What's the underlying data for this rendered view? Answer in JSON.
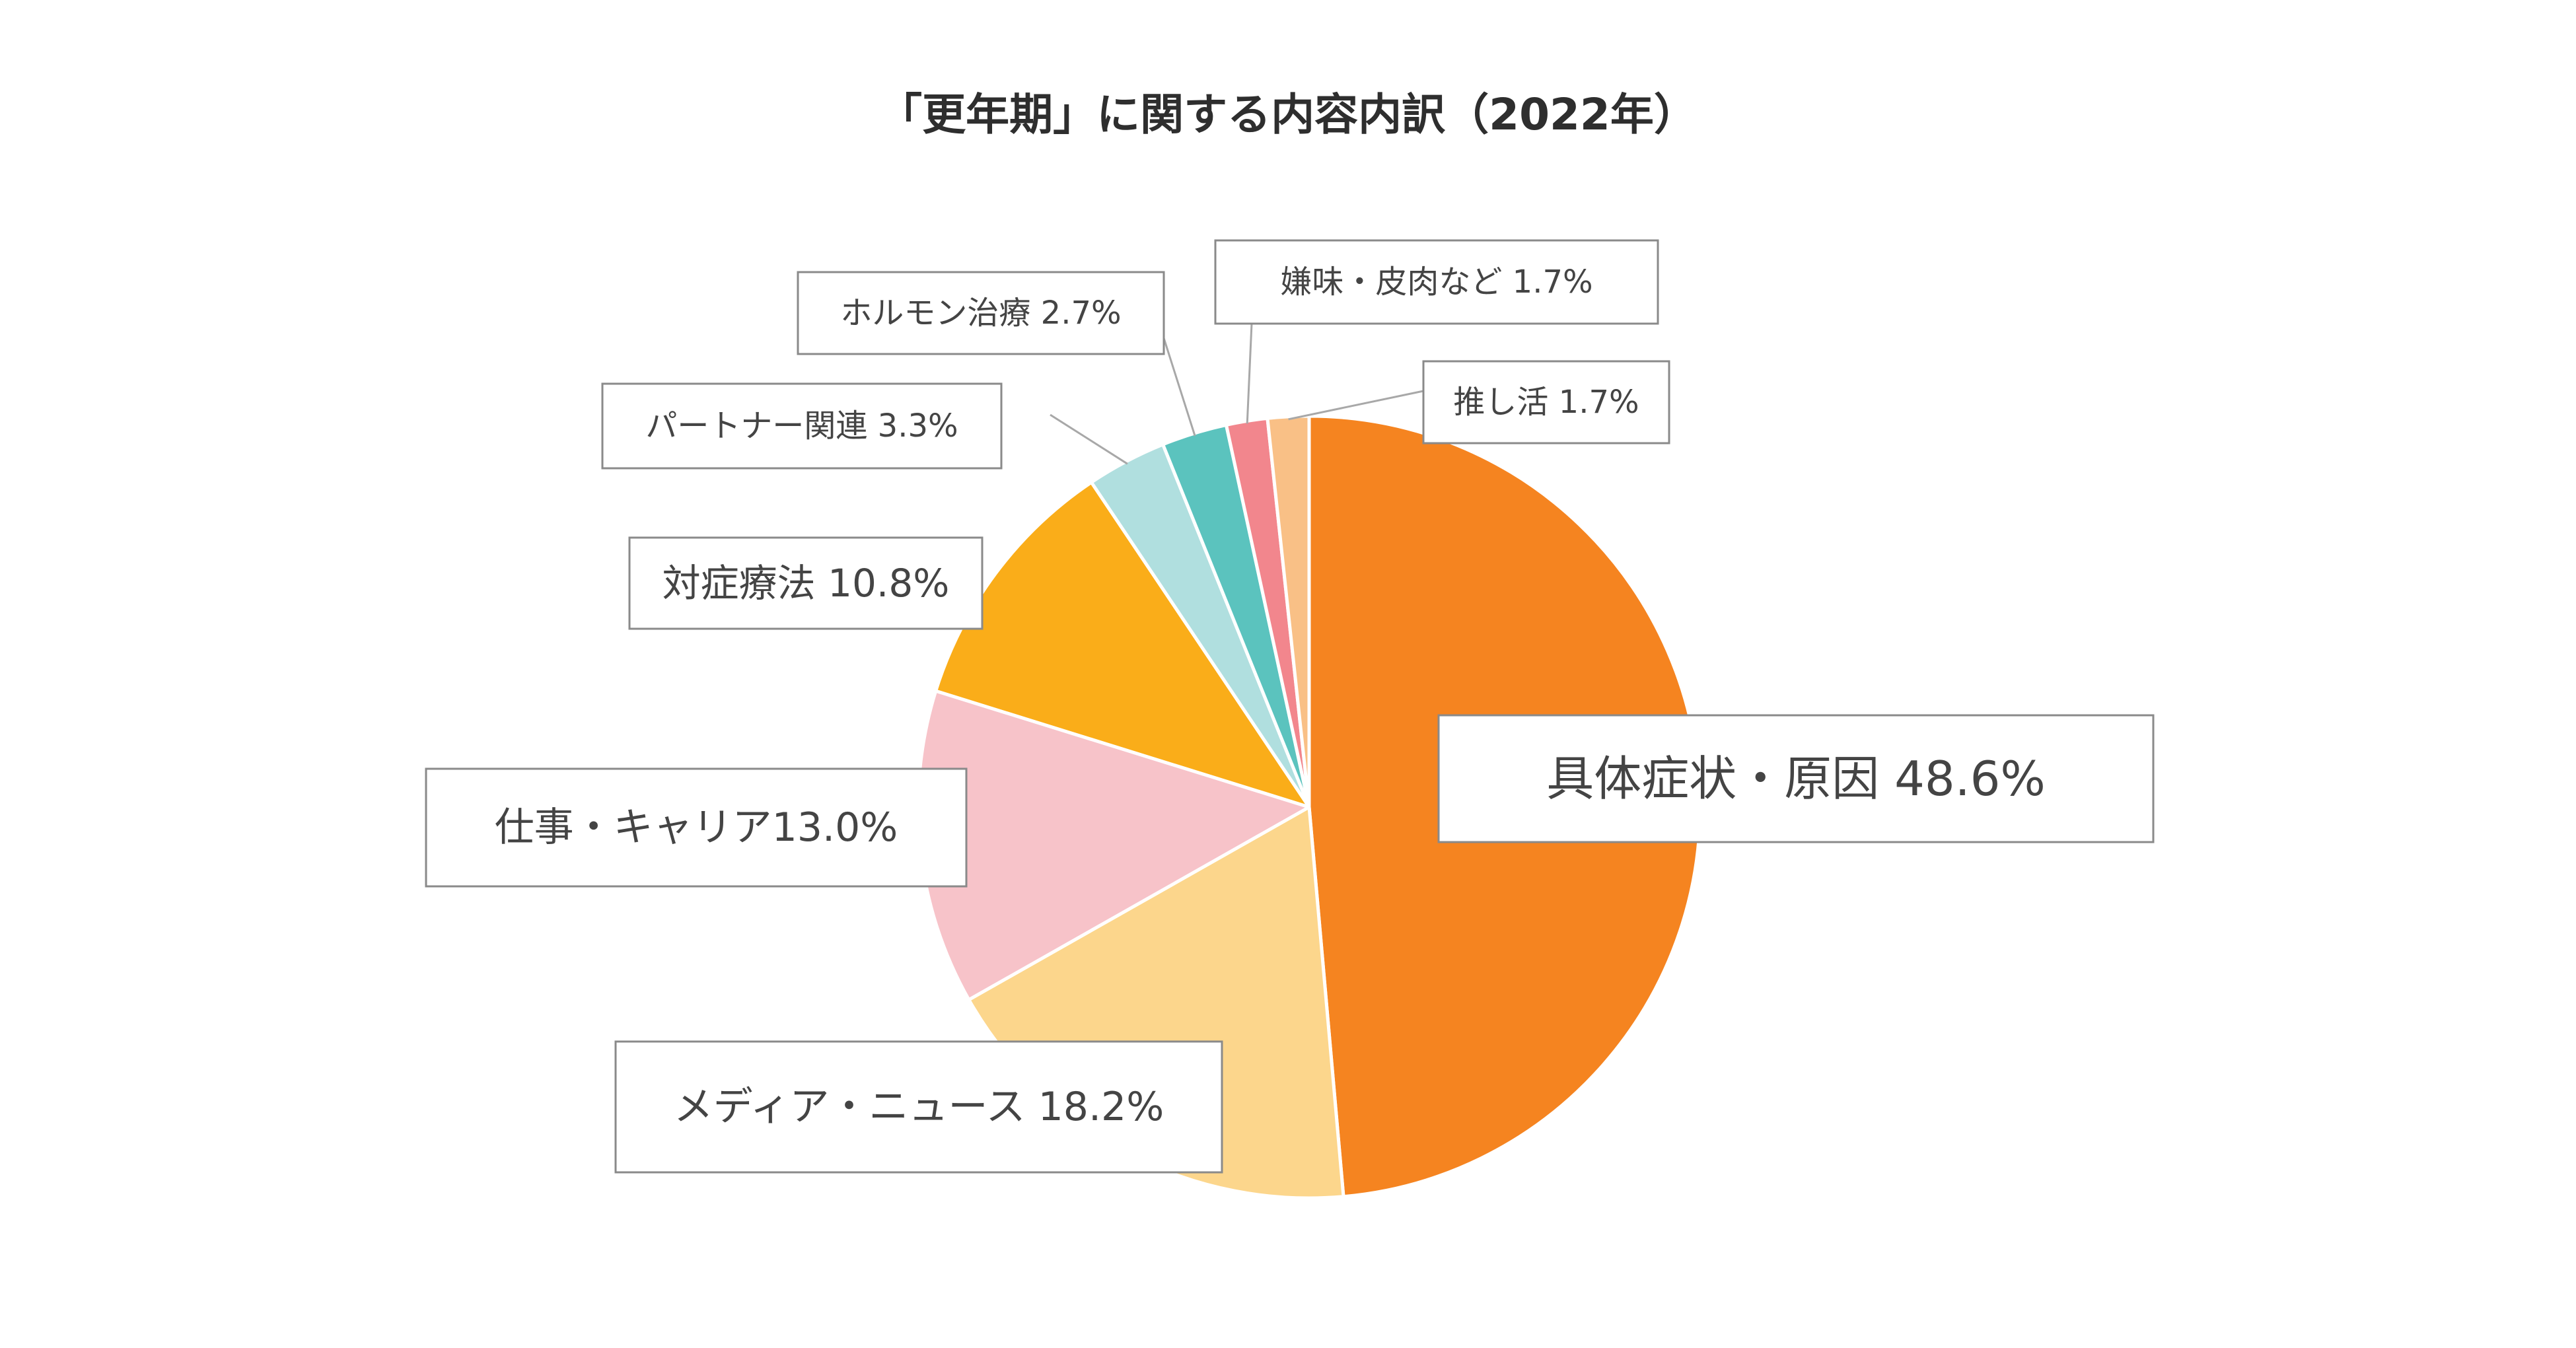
{
  "chart_data": {
    "type": "pie",
    "title": "「更年期」に関する内容内訳（2022年）",
    "unit": "%",
    "start_angle_deg": 0,
    "direction": "clockwise",
    "legend": "none",
    "slices": [
      {
        "name": "具体症状・原因",
        "value": 48.6,
        "label": "具体症状・原因 48.6%",
        "color": "#F58420"
      },
      {
        "name": "メディア・ニュース",
        "value": 18.2,
        "label": "メディア・ニュース 18.2%",
        "color": "#FCD68C"
      },
      {
        "name": "仕事・キャリア",
        "value": 13.0,
        "label": "仕事・キャリア13.0%",
        "color": "#F7C3C9"
      },
      {
        "name": "対症療法",
        "value": 10.8,
        "label": "対症療法 10.8%",
        "color": "#FAAD19"
      },
      {
        "name": "パートナー関連",
        "value": 3.3,
        "label": "パートナー関連 3.3%",
        "color": "#B0DFDF"
      },
      {
        "name": "ホルモン治療",
        "value": 2.7,
        "label": "ホルモン治療 2.7%",
        "color": "#5BC3BE"
      },
      {
        "name": "嫌味・皮肉など",
        "value": 1.7,
        "label": "嫌味・皮肉など 1.7%",
        "color": "#F2868D"
      },
      {
        "name": "推し活",
        "value": 1.7,
        "label": "推し活 1.7%",
        "color": "#F9C086"
      }
    ]
  }
}
